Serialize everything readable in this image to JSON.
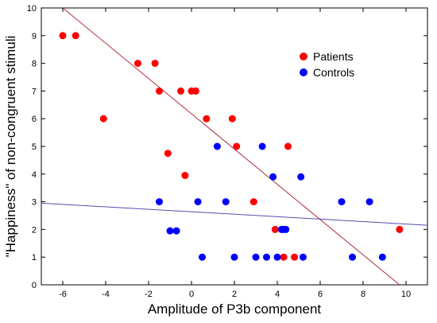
{
  "chart_data": {
    "type": "scatter",
    "xlabel": "Amplitude of P3b component",
    "ylabel": "\"Happiness\" of non-congruent stimuli",
    "xlim": [
      -7,
      11
    ],
    "ylim": [
      0,
      10
    ],
    "xticks": [
      -6,
      -4,
      -2,
      0,
      2,
      4,
      6,
      8,
      10
    ],
    "yticks": [
      0,
      1,
      2,
      3,
      4,
      5,
      6,
      7,
      8,
      9,
      10
    ],
    "grid": false,
    "legend_position": "top-right",
    "series": [
      {
        "name": "Patients",
        "color": "#ff0000",
        "points": [
          [
            -6.0,
            9
          ],
          [
            -5.4,
            9
          ],
          [
            -4.1,
            6
          ],
          [
            -2.5,
            8
          ],
          [
            -1.7,
            8
          ],
          [
            -1.5,
            7
          ],
          [
            -1.1,
            4.75
          ],
          [
            -0.5,
            7
          ],
          [
            -0.3,
            3.95
          ],
          [
            0.0,
            7
          ],
          [
            0.2,
            7
          ],
          [
            0.7,
            6
          ],
          [
            1.9,
            6
          ],
          [
            2.1,
            5
          ],
          [
            2.9,
            3
          ],
          [
            3.9,
            2
          ],
          [
            4.3,
            1
          ],
          [
            4.5,
            5
          ],
          [
            4.8,
            1
          ],
          [
            9.7,
            2
          ]
        ],
        "trend": {
          "x": [
            -6,
            9.7
          ],
          "y": [
            10,
            0
          ]
        }
      },
      {
        "name": "Controls",
        "color": "#0000ff",
        "points": [
          [
            -1.5,
            3
          ],
          [
            -1.0,
            1.95
          ],
          [
            -0.7,
            1.95
          ],
          [
            0.3,
            3
          ],
          [
            0.5,
            1
          ],
          [
            1.2,
            5
          ],
          [
            1.6,
            3
          ],
          [
            2.0,
            1
          ],
          [
            3.0,
            1
          ],
          [
            3.3,
            5
          ],
          [
            3.5,
            1
          ],
          [
            3.8,
            3.9
          ],
          [
            4.0,
            1
          ],
          [
            4.2,
            2
          ],
          [
            4.3,
            2
          ],
          [
            4.4,
            2
          ],
          [
            5.1,
            3.9
          ],
          [
            5.2,
            1
          ],
          [
            7.0,
            3
          ],
          [
            7.5,
            1
          ],
          [
            8.3,
            3
          ],
          [
            8.9,
            1
          ]
        ],
        "trend": {
          "x": [
            -7,
            11
          ],
          "y": [
            2.95,
            2.15
          ]
        }
      }
    ]
  }
}
